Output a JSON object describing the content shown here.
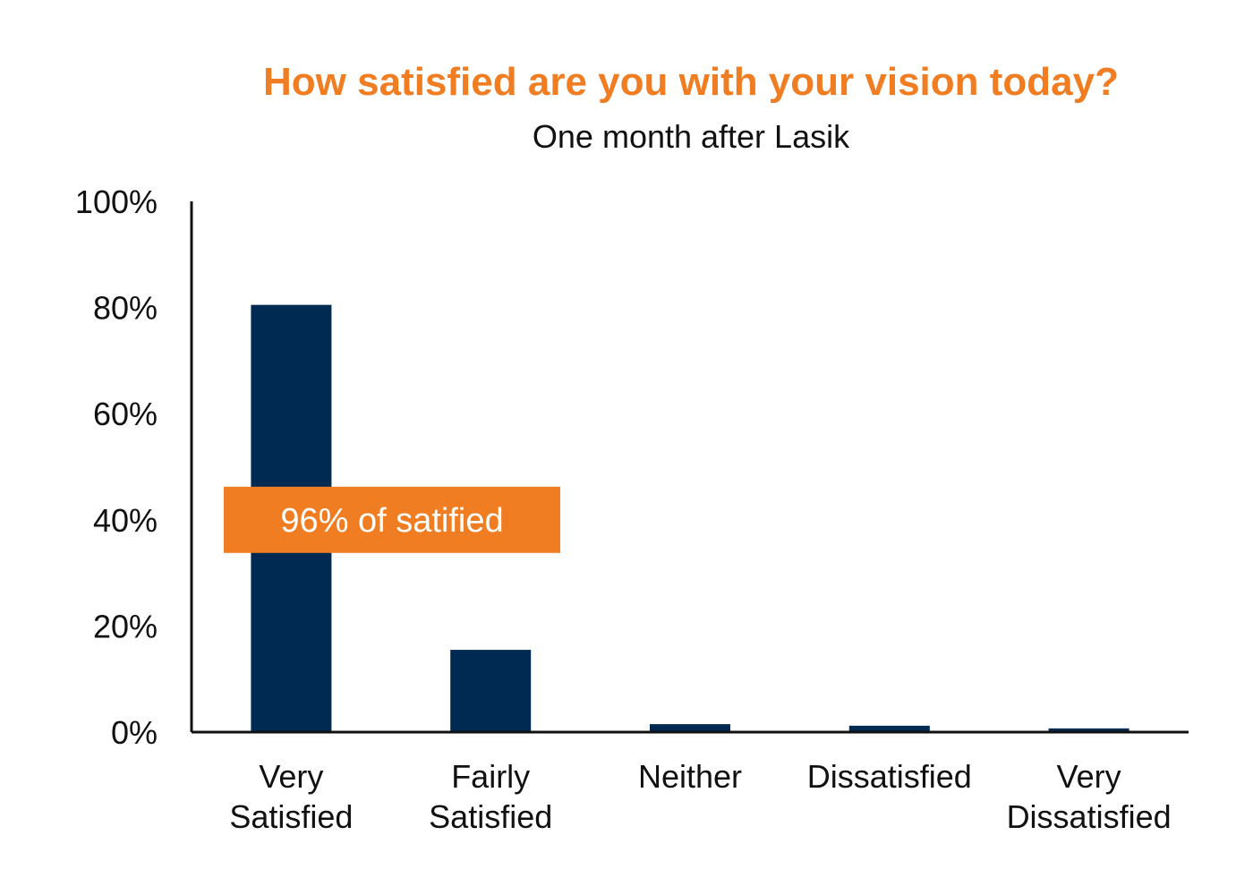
{
  "colors": {
    "title": "#f07d22",
    "text": "#111111",
    "bar": "#002a52",
    "axis": "#111111",
    "annotation_bg": "#f07d22",
    "annotation_text": "#ffffff"
  },
  "chart_data": {
    "type": "bar",
    "title": "How satisfied are you with your vision today?",
    "subtitle": "One month after Lasik",
    "xlabel": "",
    "ylabel": "",
    "categories": [
      [
        "Very",
        "Satisfied"
      ],
      [
        "Fairly",
        "Satisfied"
      ],
      [
        "Neither"
      ],
      [
        "Dissatisfied"
      ],
      [
        "Very",
        "Dissatisfied"
      ]
    ],
    "values": [
      80.5,
      15.5,
      1.5,
      1.2,
      0.7
    ],
    "ylim": [
      0,
      100
    ],
    "yticks": [
      0,
      20,
      40,
      60,
      80,
      100
    ],
    "ytick_labels": [
      "0%",
      "20%",
      "40%",
      "60%",
      "80%",
      "100%"
    ],
    "grid": false,
    "legend": "none",
    "annotation": {
      "text": "96% of satified",
      "y_center": 40
    }
  }
}
